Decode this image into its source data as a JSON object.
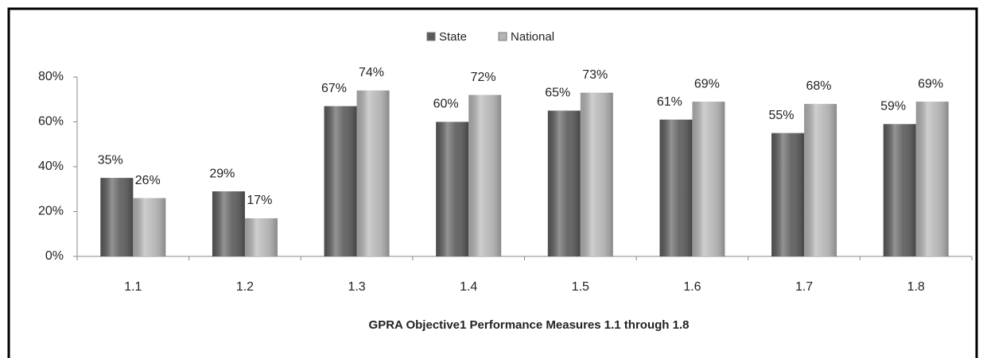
{
  "chart_data": {
    "type": "bar",
    "x_label": "GPRA Objective1 Performance Measures 1.1 through 1.8",
    "categories": [
      "1.1",
      "1.2",
      "1.3",
      "1.4",
      "1.5",
      "1.6",
      "1.7",
      "1.8"
    ],
    "series": [
      {
        "name": "State",
        "color": "#5a5a5a",
        "values": [
          35,
          29,
          67,
          60,
          65,
          61,
          55,
          59
        ],
        "value_labels": [
          "35%",
          "29%",
          "67%",
          "60%",
          "65%",
          "61%",
          "55%",
          "59%"
        ]
      },
      {
        "name": "National",
        "color": "#b4b4b4",
        "values": [
          26,
          17,
          74,
          72,
          73,
          69,
          68,
          69
        ],
        "value_labels": [
          "26%",
          "17%",
          "74%",
          "72%",
          "73%",
          "69%",
          "68%",
          "69%"
        ]
      }
    ],
    "ylim": [
      0,
      80
    ],
    "yticks": [
      {
        "value": 0,
        "label": "0%"
      },
      {
        "value": 20,
        "label": "20%"
      },
      {
        "value": 40,
        "label": "40%"
      },
      {
        "value": 60,
        "label": "60%"
      },
      {
        "value": 80,
        "label": "80%"
      }
    ],
    "legend": "top"
  }
}
